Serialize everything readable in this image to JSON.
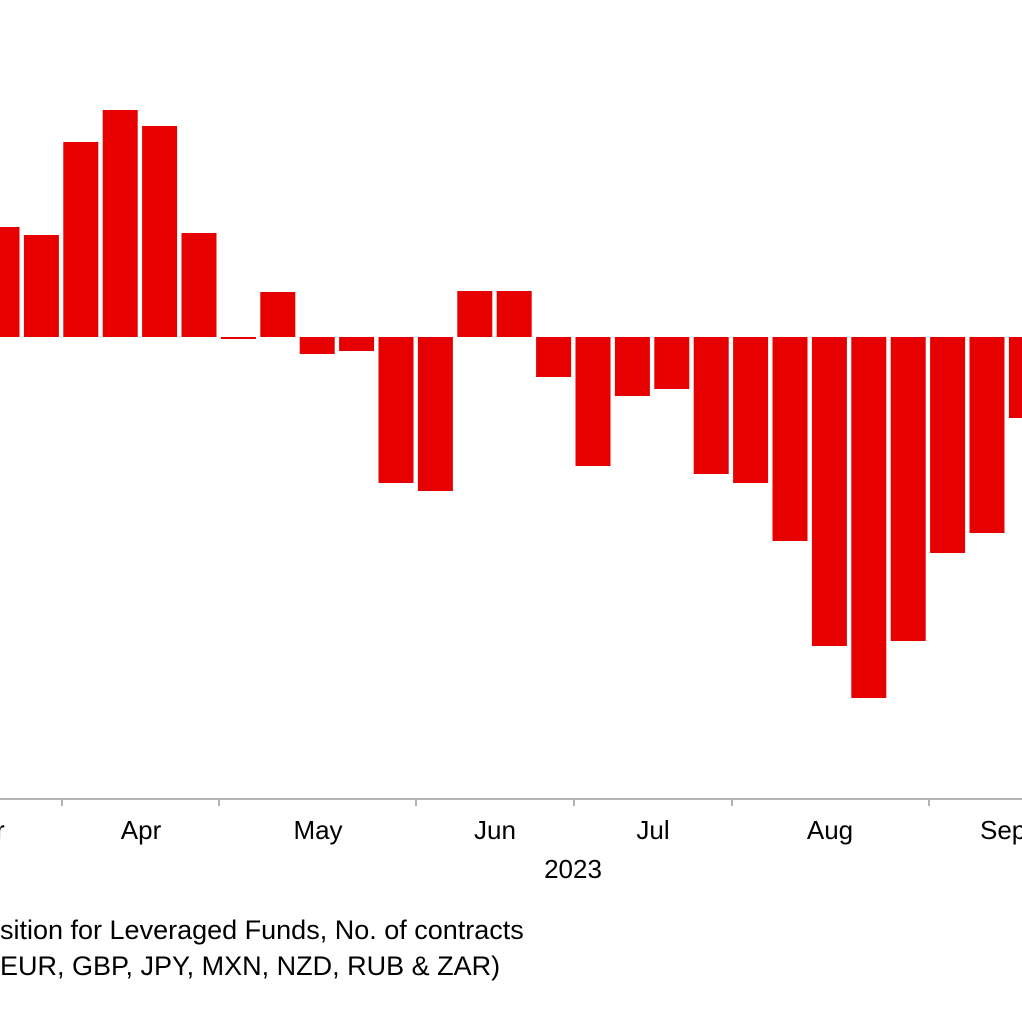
{
  "chart_data": {
    "type": "bar",
    "title": "",
    "xlabel": "2023",
    "ylabel": "",
    "x_tick_labels": [
      "r",
      "Apr",
      "May",
      "Jun",
      "Jul",
      "Aug",
      "Sep"
    ],
    "categories": [
      "2023-03-21",
      "2023-03-28",
      "2023-04-04",
      "2023-04-11",
      "2023-04-18",
      "2023-04-25",
      "2023-05-02",
      "2023-05-09",
      "2023-05-16",
      "2023-05-23",
      "2023-05-30",
      "2023-06-06",
      "2023-06-13",
      "2023-06-20",
      "2023-06-27",
      "2023-07-04",
      "2023-07-11",
      "2023-07-18",
      "2023-07-25",
      "2023-08-01",
      "2023-08-08",
      "2023-08-15",
      "2023-08-22",
      "2023-08-29",
      "2023-09-05",
      "2023-09-12",
      "2023-09-19"
    ],
    "values": [
      110,
      102,
      195,
      227,
      211,
      104,
      -2,
      45,
      -17,
      -14,
      -146,
      -154,
      46,
      46,
      -40,
      -129,
      -59,
      -52,
      -137,
      -146,
      -204,
      -309,
      -361,
      -304,
      -216,
      -196,
      -81
    ],
    "ylim": [
      -460,
      330
    ],
    "colors": {
      "bar": "#e60000",
      "axis": "#b4b4b4"
    }
  },
  "caption": {
    "line1": "sition for Leveraged Funds, No. of contracts",
    "line2": " EUR, GBP, JPY, MXN, NZD, RUB & ZAR)"
  }
}
